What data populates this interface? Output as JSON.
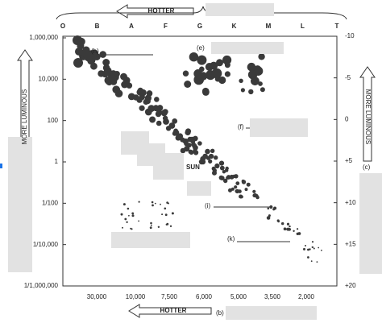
{
  "top_axis": {
    "labels": [
      "O",
      "B",
      "A",
      "F",
      "G",
      "K",
      "M",
      "L",
      "T"
    ],
    "arrow_label": "HOTTER"
  },
  "left_axis": {
    "title": "MORE LUMINOUS",
    "labels": [
      "1,000,000",
      "10,000",
      "100",
      "1",
      "1/100",
      "1/10,000",
      "1/1,000,000"
    ]
  },
  "right_axis": {
    "title": "MORE LUMINOUS",
    "labels": [
      "-10",
      "-5",
      "0",
      "+5",
      "+10",
      "+15",
      "+20"
    ],
    "marker": "(c)"
  },
  "bottom_axis": {
    "labels": [
      "30,000",
      "10,000",
      "7,500",
      "6,000",
      "5,000",
      "3,500",
      "2,000"
    ],
    "arrow_label": "HOTTER",
    "marker": "(b)"
  },
  "annotations": {
    "h": "(h)",
    "e": "(e)",
    "f": "(f)",
    "i": "(i)",
    "k": "(k)",
    "sun": "SUN"
  }
}
